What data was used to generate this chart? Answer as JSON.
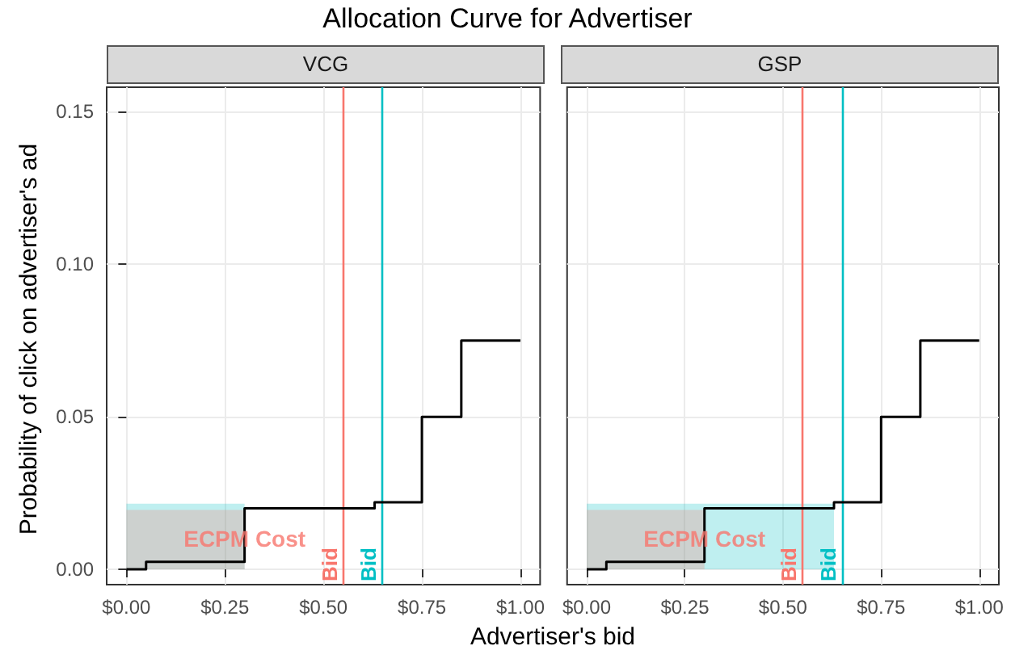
{
  "chart_data": [
    {
      "type": "step",
      "title": "Allocation Curve for Advertiser",
      "subtitle": "VCG",
      "xlabel": "Advertiser's bid",
      "ylabel": "Probability of click on advertiser's ad",
      "series": [
        {
          "type": "area",
          "color": "#00bfc4",
          "x": [
            0,
            0.3
          ],
          "values": [
            0.0215,
            0.0215
          ]
        },
        {
          "type": "area",
          "color": "#f8766d",
          "x": [
            0,
            0.3
          ],
          "values": [
            0.0195,
            0.0195
          ]
        },
        {
          "color": "#000000",
          "x": [
            0,
            0.05,
            0.3,
            0.63,
            0.75,
            0.85,
            1.0
          ],
          "values": [
            0,
            0.0025,
            0.02,
            0.022,
            0.05,
            0.075,
            0.075
          ]
        }
      ],
      "xlim": [
        -0.05,
        1.05
      ],
      "xticks": [
        {
          "value": 0,
          "label": "$0.00"
        },
        {
          "value": 0.25,
          "label": "$0.25"
        },
        {
          "value": 0.5,
          "label": "$0.50"
        },
        {
          "value": 0.75,
          "label": "$0.75"
        },
        {
          "value": 1,
          "label": "$1.00"
        }
      ],
      "ylim": [
        -0.005,
        0.158
      ],
      "yticks": [
        {
          "value": 0,
          "label": "0.00"
        },
        {
          "value": 0.05,
          "label": "0.05"
        },
        {
          "value": 0.1,
          "label": "0.10"
        },
        {
          "value": 0.15,
          "label": "0.15"
        }
      ],
      "ref_lines": [
        {
          "axis": "x",
          "value": 0.55,
          "label": "Bid",
          "color": "#f8766d"
        },
        {
          "axis": "x",
          "value": 0.65,
          "label": "Bid",
          "color": "#00bfc4"
        }
      ],
      "annotations": [
        {
          "text": "ECPM Cost",
          "x": 0.3,
          "y": 0.01
        }
      ],
      "grid": true
    },
    {
      "type": "step",
      "subtitle": "GSP",
      "series": [
        {
          "type": "area",
          "color": "#00bfc4",
          "x": [
            0,
            0.63
          ],
          "values": [
            0.0215,
            0.0215
          ]
        },
        {
          "type": "area",
          "color": "#f8766d",
          "x": [
            0,
            0.3
          ],
          "values": [
            0.0195,
            0.0195
          ]
        },
        {
          "color": "#000000",
          "x": [
            0,
            0.05,
            0.3,
            0.63,
            0.75,
            0.85,
            1.0
          ],
          "values": [
            0,
            0.0025,
            0.02,
            0.022,
            0.05,
            0.075,
            0.075
          ]
        }
      ],
      "xlim": [
        -0.05,
        1.05
      ],
      "xticks": [
        {
          "value": 0,
          "label": "$0.00"
        },
        {
          "value": 0.25,
          "label": "$0.25"
        },
        {
          "value": 0.5,
          "label": "$0.50"
        },
        {
          "value": 0.75,
          "label": "$0.75"
        },
        {
          "value": 1,
          "label": "$1.00"
        }
      ],
      "ylim": [
        -0.005,
        0.158
      ],
      "yticks": [
        0,
        0.05,
        0.1,
        0.15
      ],
      "ref_lines": [
        {
          "axis": "x",
          "value": 0.55,
          "label": "Bid",
          "color": "#f8766d"
        },
        {
          "axis": "x",
          "value": 0.65,
          "label": "Bid",
          "color": "#00bfc4"
        }
      ],
      "annotations": [
        {
          "text": "ECPM Cost",
          "x": 0.3,
          "y": 0.01
        }
      ],
      "tick_labels": "x",
      "grid": true
    }
  ]
}
